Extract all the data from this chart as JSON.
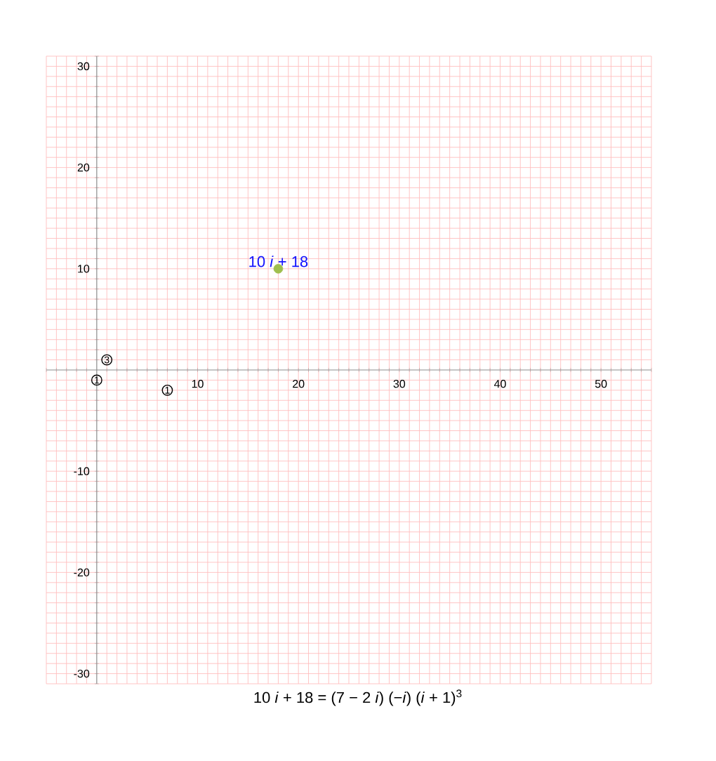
{
  "chart_data": {
    "type": "scatter",
    "title": "10 *i* + 18 = (7 − 2 *i*) (−*i*) (*i* + 1)$^{3}$",
    "xlim": [
      -5,
      55
    ],
    "ylim": [
      -31,
      31
    ],
    "xticks": [
      {
        "value": -5,
        "label": null
      },
      {
        "value": -4,
        "label": null
      },
      {
        "value": -3,
        "label": null
      },
      {
        "value": -2,
        "label": null
      },
      {
        "value": -1,
        "label": null
      },
      {
        "value": 0,
        "label": null
      },
      {
        "value": 1,
        "label": null
      },
      {
        "value": 2,
        "label": null
      },
      {
        "value": 3,
        "label": null
      },
      {
        "value": 4,
        "label": null
      },
      {
        "value": 5,
        "label": null
      },
      {
        "value": 6,
        "label": null
      },
      {
        "value": 7,
        "label": null
      },
      {
        "value": 8,
        "label": null
      },
      {
        "value": 9,
        "label": null
      },
      10,
      {
        "value": 11,
        "label": null
      },
      {
        "value": 12,
        "label": null
      },
      {
        "value": 13,
        "label": null
      },
      {
        "value": 14,
        "label": null
      },
      {
        "value": 15,
        "label": null
      },
      {
        "value": 16,
        "label": null
      },
      {
        "value": 17,
        "label": null
      },
      {
        "value": 18,
        "label": null
      },
      {
        "value": 19,
        "label": null
      },
      20,
      {
        "value": 21,
        "label": null
      },
      {
        "value": 22,
        "label": null
      },
      {
        "value": 23,
        "label": null
      },
      {
        "value": 24,
        "label": null
      },
      {
        "value": 25,
        "label": null
      },
      {
        "value": 26,
        "label": null
      },
      {
        "value": 27,
        "label": null
      },
      {
        "value": 28,
        "label": null
      },
      {
        "value": 29,
        "label": null
      },
      30,
      {
        "value": 31,
        "label": null
      },
      {
        "value": 32,
        "label": null
      },
      {
        "value": 33,
        "label": null
      },
      {
        "value": 34,
        "label": null
      },
      {
        "value": 35,
        "label": null
      },
      {
        "value": 36,
        "label": null
      },
      {
        "value": 37,
        "label": null
      },
      {
        "value": 38,
        "label": null
      },
      {
        "value": 39,
        "label": null
      },
      40,
      {
        "value": 41,
        "label": null
      },
      {
        "value": 42,
        "label": null
      },
      {
        "value": 43,
        "label": null
      },
      {
        "value": 44,
        "label": null
      },
      {
        "value": 45,
        "label": null
      },
      {
        "value": 46,
        "label": null
      },
      {
        "value": 47,
        "label": null
      },
      {
        "value": 48,
        "label": null
      },
      {
        "value": 49,
        "label": null
      },
      50,
      {
        "value": 51,
        "label": null
      },
      {
        "value": 52,
        "label": null
      },
      {
        "value": 53,
        "label": null
      },
      {
        "value": 54,
        "label": null
      },
      {
        "value": 55,
        "label": null
      }
    ],
    "yticks": [
      {
        "value": -31,
        "label": null
      },
      -30,
      {
        "value": -29,
        "label": null
      },
      {
        "value": -28,
        "label": null
      },
      {
        "value": -27,
        "label": null
      },
      {
        "value": -26,
        "label": null
      },
      {
        "value": -25,
        "label": null
      },
      {
        "value": -24,
        "label": null
      },
      {
        "value": -23,
        "label": null
      },
      {
        "value": -22,
        "label": null
      },
      {
        "value": -21,
        "label": null
      },
      -20,
      {
        "value": -19,
        "label": null
      },
      {
        "value": -18,
        "label": null
      },
      {
        "value": -17,
        "label": null
      },
      {
        "value": -16,
        "label": null
      },
      {
        "value": -15,
        "label": null
      },
      {
        "value": -14,
        "label": null
      },
      {
        "value": -13,
        "label": null
      },
      {
        "value": -12,
        "label": null
      },
      {
        "value": -11,
        "label": null
      },
      -10,
      {
        "value": -9,
        "label": null
      },
      {
        "value": -8,
        "label": null
      },
      {
        "value": -7,
        "label": null
      },
      {
        "value": -6,
        "label": null
      },
      {
        "value": -5,
        "label": null
      },
      {
        "value": -4,
        "label": null
      },
      {
        "value": -3,
        "label": null
      },
      {
        "value": -2,
        "label": null
      },
      {
        "value": -1,
        "label": null
      },
      {
        "value": 0,
        "label": null
      },
      {
        "value": 1,
        "label": null
      },
      {
        "value": 2,
        "label": null
      },
      {
        "value": 3,
        "label": null
      },
      {
        "value": 4,
        "label": null
      },
      {
        "value": 5,
        "label": null
      },
      {
        "value": 6,
        "label": null
      },
      {
        "value": 7,
        "label": null
      },
      {
        "value": 8,
        "label": null
      },
      {
        "value": 9,
        "label": null
      },
      10,
      {
        "value": 11,
        "label": null
      },
      {
        "value": 12,
        "label": null
      },
      {
        "value": 13,
        "label": null
      },
      {
        "value": 14,
        "label": null
      },
      {
        "value": 15,
        "label": null
      },
      {
        "value": 16,
        "label": null
      },
      {
        "value": 17,
        "label": null
      },
      {
        "value": 18,
        "label": null
      },
      {
        "value": 19,
        "label": null
      },
      20,
      {
        "value": 21,
        "label": null
      },
      {
        "value": 22,
        "label": null
      },
      {
        "value": 23,
        "label": null
      },
      {
        "value": 24,
        "label": null
      },
      {
        "value": 25,
        "label": null
      },
      {
        "value": 26,
        "label": null
      },
      {
        "value": 27,
        "label": null
      },
      {
        "value": 28,
        "label": null
      },
      {
        "value": 29,
        "label": null
      },
      30,
      {
        "value": 31,
        "label": null
      }
    ],
    "grid": true,
    "marker": "circle",
    "series": [
      {
        "x": [
          18
        ],
        "values": [
          10
        ],
        "color": "#9fbf4f"
      },
      {
        "x": [
          0,
          1,
          7
        ],
        "values": [
          -1,
          1,
          -2
        ],
        "color": "#000000"
      }
    ],
    "annotations": [
      {
        "text": "10 *i* + 18",
        "x": 18,
        "y": 10
      },
      {
        "text": "1",
        "x": 0,
        "y": -1
      },
      {
        "text": "3",
        "x": 1,
        "y": 1
      },
      {
        "text": "1",
        "x": 7,
        "y": -2
      }
    ]
  }
}
